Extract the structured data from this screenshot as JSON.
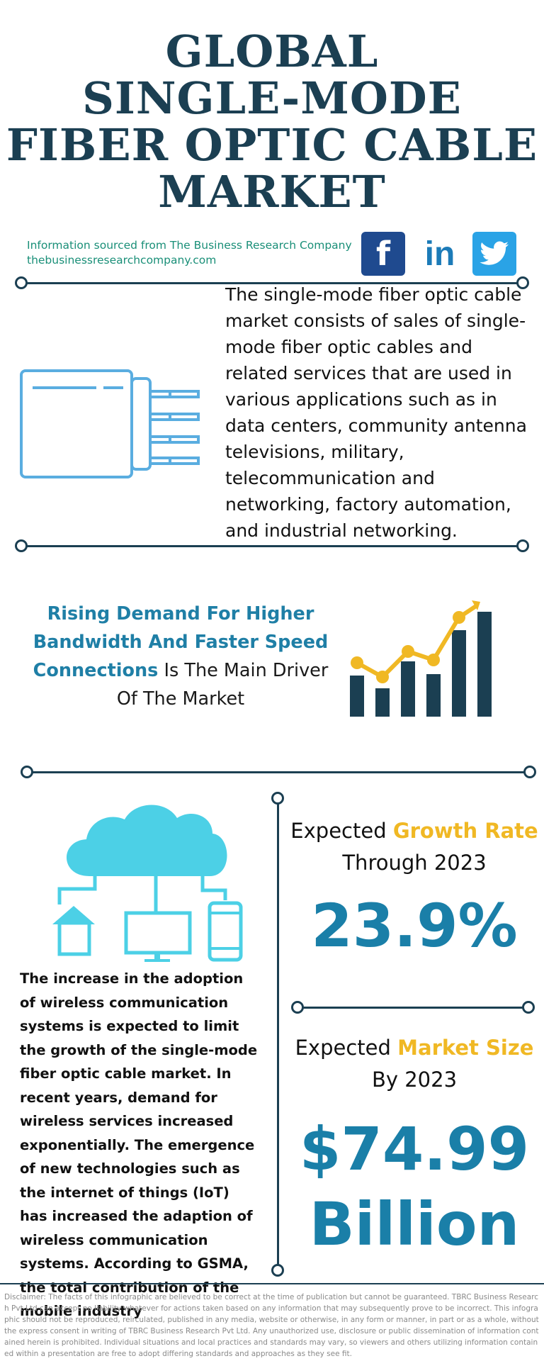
{
  "title": {
    "line1": "GLOBAL",
    "line2": "SINGLE-MODE",
    "line3": "FIBER OPTIC CABLE",
    "line4": "MARKET"
  },
  "source": {
    "line1": "Information sourced from The Business Research Company",
    "line2": "thebusinessresearchcompany.com"
  },
  "social": {
    "facebook_icon": "facebook-icon",
    "facebook_text": "f",
    "linkedin_icon": "linkedin-icon",
    "linkedin_text": "in",
    "twitter_icon": "twitter-icon"
  },
  "intro": "The single-mode fiber optic cable market consists of sales of single-mode fiber optic cables and related services that are used in various applications such as in data centers, community antenna televisions, military, telecommunication and networking, factory automation, and industrial networking.",
  "driver": {
    "highlight": "Rising Demand For Higher Bandwidth And Faster Speed Connections",
    "rest": " Is The Main Driver Of The Market"
  },
  "growth": {
    "label_prefix": "Expected ",
    "label_highlight": "Growth Rate",
    "label_suffix": "Through 2023",
    "value": "23.9%"
  },
  "market_size": {
    "label_prefix": "Expected ",
    "label_highlight": "Market Size",
    "label_suffix": "By 2023",
    "value_line1": "$74.99",
    "value_line2": "Billion"
  },
  "body_text": "The increase in the adoption of wireless communication systems is expected to limit the growth of the single-mode fiber optic cable market. In recent years, demand for wireless services increased exponentially. The emergence of new technologies such as the internet of things (IoT) has increased the adaption of wireless communication systems. According to GSMA, the total contribution of the mobile industry",
  "disclaimer": "Disclaimer: The facts of this infographic are believed to be correct at the time of publication but cannot be guaranteed. TBRC Business Research Pvt Ltd can accept no liability whatever for actions taken based on any information that may subsequently prove to be incorrect. This infographic should not be reproduced, reirculated, published in any media, website or otherwise, in any form or manner, in part or as a whole, without the express consent in writing of TBRC Business Research Pvt Ltd. Any unauthorized use, disclosure or public dissemination of information contained herein is prohibited. Individual situations and local practices and standards may vary, so viewers and others utilizing information contained within a presentation are free to adopt differing standards and approaches as they see fit.",
  "colors": {
    "navy": "#1b3f52",
    "teal_text": "#1a8f78",
    "blue_accent": "#1f7fa6",
    "yellow_accent": "#f0b824",
    "cloud": "#4cd0e6",
    "cable": "#5aade0"
  }
}
